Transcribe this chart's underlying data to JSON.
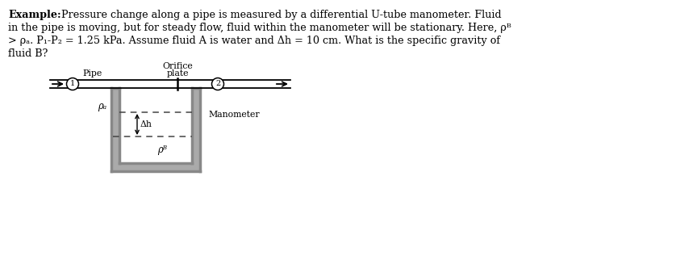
{
  "bg_color": "#ffffff",
  "text_color": "#000000",
  "example_bold": "Example:",
  "line1_rest": "  Pressure change along a pipe is measured by a differential U-tube manometer. Fluid",
  "line2": "in the pipe is moving, but for steady flow, fluid within the manometer will be stationary. Here, ρᴮ",
  "line3": "> ρₐ. P₁-P₂ = 1.25 kPa. Assume fluid A is water and Δh = 10 cm. What is the specific gravity of",
  "line4": "fluid B?",
  "pipe_label": "Pipe",
  "orifice_label_1": "Orifice",
  "orifice_label_2": "plate",
  "manometer_label": "Manometer",
  "rho_A_label": "ρₐ",
  "rho_B_label": "ρᴮ",
  "delta_h_label": "Δh",
  "node1": "1",
  "node2": "2",
  "wall_color": "#888888",
  "dashed_color": "#555555",
  "text_fontsize": 9.2,
  "diagram_fontsize": 7.8
}
